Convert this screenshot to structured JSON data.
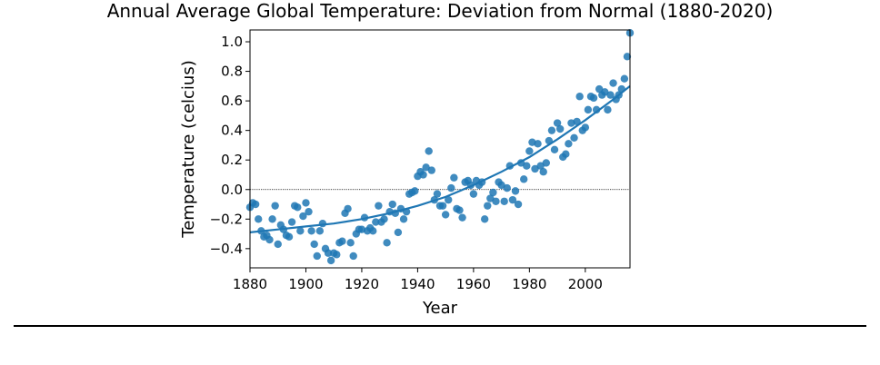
{
  "chart_data": {
    "type": "scatter",
    "title": "Annual Average Global Temperature: Deviation from Normal (1880-2020)",
    "xlabel": "Year",
    "ylabel": "Temperature (celcius)",
    "xlim": [
      1880,
      2016
    ],
    "ylim": [
      -0.53,
      1.08
    ],
    "x_ticks": [
      "1880",
      "1900",
      "1920",
      "1940",
      "1960",
      "1980",
      "2000"
    ],
    "y_ticks": [
      "−0.4",
      "−0.2",
      "0.0",
      "0.2",
      "0.4",
      "0.6",
      "0.8",
      "1.0"
    ],
    "x_tick_values": [
      1880,
      1900,
      1920,
      1940,
      1960,
      1980,
      2000
    ],
    "y_tick_values": [
      -0.4,
      -0.2,
      0.0,
      0.2,
      0.4,
      0.6,
      0.8,
      1.0
    ],
    "reference_line": 0.0,
    "trend_line": true,
    "marker_color": "#1f77b4",
    "x": [
      1880,
      1881,
      1882,
      1883,
      1884,
      1885,
      1886,
      1887,
      1888,
      1889,
      1890,
      1891,
      1892,
      1893,
      1894,
      1895,
      1896,
      1897,
      1898,
      1899,
      1900,
      1901,
      1902,
      1903,
      1904,
      1905,
      1906,
      1907,
      1908,
      1909,
      1910,
      1911,
      1912,
      1913,
      1914,
      1915,
      1916,
      1917,
      1918,
      1919,
      1920,
      1921,
      1922,
      1923,
      1924,
      1925,
      1926,
      1927,
      1928,
      1929,
      1930,
      1931,
      1932,
      1933,
      1934,
      1935,
      1936,
      1937,
      1938,
      1939,
      1940,
      1941,
      1942,
      1943,
      1944,
      1945,
      1946,
      1947,
      1948,
      1949,
      1950,
      1951,
      1952,
      1953,
      1954,
      1955,
      1956,
      1957,
      1958,
      1959,
      1960,
      1961,
      1962,
      1963,
      1964,
      1965,
      1966,
      1967,
      1968,
      1969,
      1970,
      1971,
      1972,
      1973,
      1974,
      1975,
      1976,
      1977,
      1978,
      1979,
      1980,
      1981,
      1982,
      1983,
      1984,
      1985,
      1986,
      1987,
      1988,
      1989,
      1990,
      1991,
      1992,
      1993,
      1994,
      1995,
      1996,
      1997,
      1998,
      1999,
      2000,
      2001,
      2002,
      2003,
      2004,
      2005,
      2006,
      2007,
      2008,
      2009,
      2010,
      2011,
      2012,
      2013,
      2014,
      2015,
      2016
    ],
    "y": [
      -0.12,
      -0.09,
      -0.1,
      -0.2,
      -0.28,
      -0.32,
      -0.31,
      -0.34,
      -0.2,
      -0.11,
      -0.37,
      -0.24,
      -0.27,
      -0.31,
      -0.32,
      -0.22,
      -0.11,
      -0.12,
      -0.28,
      -0.18,
      -0.09,
      -0.15,
      -0.28,
      -0.37,
      -0.45,
      -0.28,
      -0.23,
      -0.4,
      -0.43,
      -0.48,
      -0.43,
      -0.44,
      -0.36,
      -0.35,
      -0.16,
      -0.13,
      -0.36,
      -0.45,
      -0.3,
      -0.27,
      -0.27,
      -0.19,
      -0.28,
      -0.26,
      -0.28,
      -0.22,
      -0.11,
      -0.22,
      -0.2,
      -0.36,
      -0.15,
      -0.1,
      -0.16,
      -0.29,
      -0.13,
      -0.2,
      -0.15,
      -0.03,
      -0.02,
      -0.01,
      0.09,
      0.12,
      0.1,
      0.15,
      0.26,
      0.13,
      -0.07,
      -0.03,
      -0.11,
      -0.11,
      -0.17,
      -0.07,
      0.01,
      0.08,
      -0.13,
      -0.14,
      -0.19,
      0.05,
      0.06,
      0.03,
      -0.03,
      0.06,
      0.03,
      0.05,
      -0.2,
      -0.11,
      -0.06,
      -0.02,
      -0.08,
      0.05,
      0.03,
      -0.08,
      0.01,
      0.16,
      -0.07,
      -0.01,
      -0.1,
      0.18,
      0.07,
      0.16,
      0.26,
      0.32,
      0.14,
      0.31,
      0.16,
      0.12,
      0.18,
      0.33,
      0.4,
      0.27,
      0.45,
      0.41,
      0.22,
      0.24,
      0.31,
      0.45,
      0.35,
      0.46,
      0.63,
      0.4,
      0.42,
      0.54,
      0.63,
      0.62,
      0.54,
      0.68,
      0.64,
      0.66,
      0.54,
      0.64,
      0.72,
      0.61,
      0.64,
      0.68,
      0.75,
      0.9,
      1.06
    ],
    "trend": {
      "x": [
        1880,
        1890,
        1900,
        1910,
        1920,
        1930,
        1940,
        1950,
        1960,
        1970,
        1980,
        1990,
        2000,
        2010,
        2016
      ],
      "y": [
        -0.29,
        -0.27,
        -0.25,
        -0.23,
        -0.2,
        -0.16,
        -0.11,
        -0.05,
        0.03,
        0.12,
        0.22,
        0.34,
        0.47,
        0.61,
        0.7
      ]
    }
  }
}
